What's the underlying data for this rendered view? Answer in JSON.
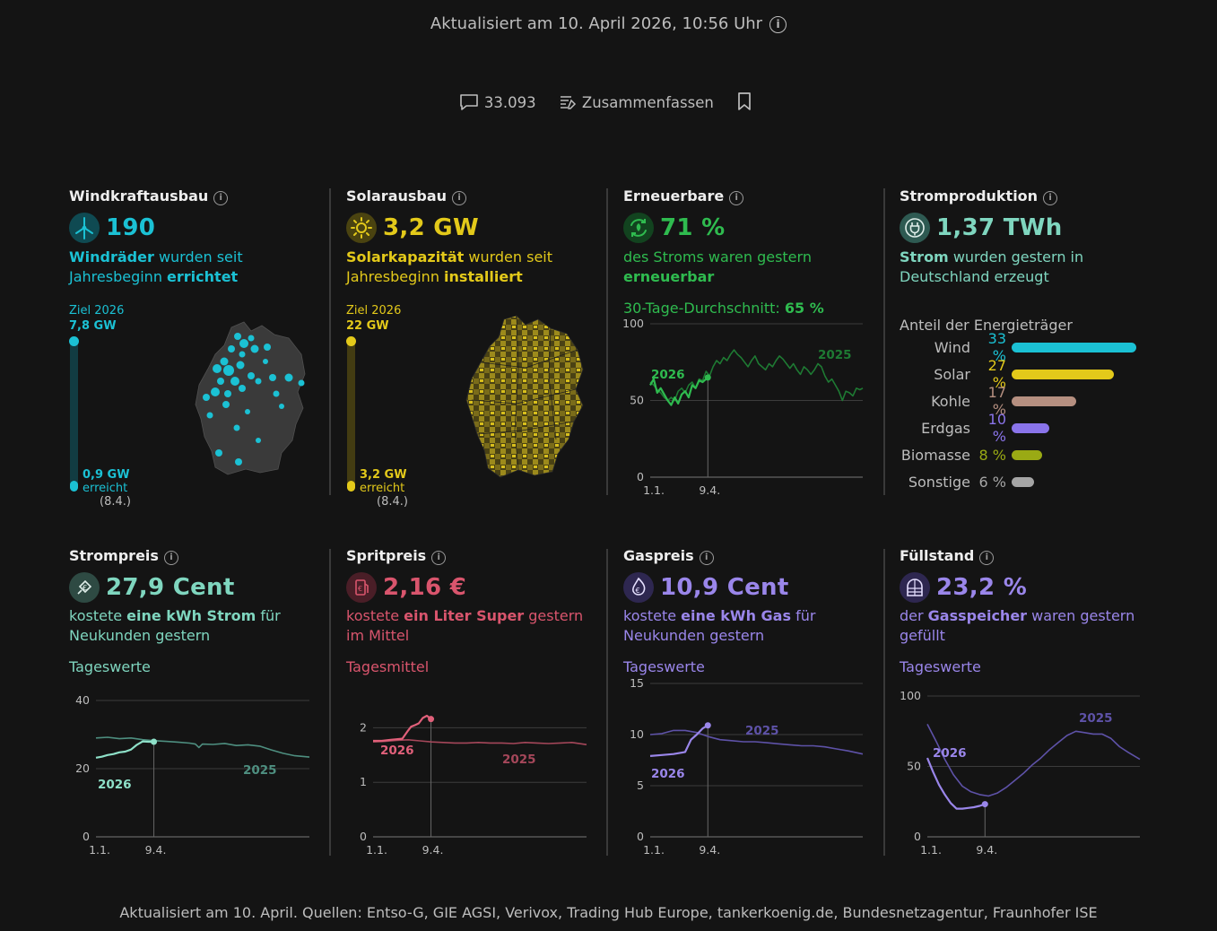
{
  "header": {
    "updated": "Aktualisiert am 10. April 2026, 10:56 Uhr",
    "comments": "33.093",
    "summarize": "Zusammenfassen"
  },
  "colors": {
    "wind": "#1bc1d4",
    "solar": "#e3c91a",
    "green": "#2fbb4f",
    "teal": "#7fd6bf",
    "red": "#d9556d",
    "purple": "#9a86ea",
    "kohle": "#b58f80",
    "bio": "#9aaa14",
    "sonst": "#a5a5a5"
  },
  "wind": {
    "title": "Windkraftausbau",
    "value": "190",
    "desc_b1": "Windräder",
    "desc_t1": " wurden seit",
    "desc_t2": "Jahresbeginn ",
    "desc_b2": "errichtet",
    "goal_label": "Ziel 2026",
    "goal_value": "7,8 GW",
    "reached_value": "0,9 GW",
    "reached_label": "erreicht",
    "reached_date": "(8.4.)",
    "reached_fraction": 0.115
  },
  "solar": {
    "title": "Solarausbau",
    "value": "3,2 GW",
    "desc_b1": "Solarkapazität",
    "desc_t1": " wurden seit",
    "desc_t2": "Jahresbeginn ",
    "desc_b2": "installiert",
    "goal_label": "Ziel 2026",
    "goal_value": "22 GW",
    "reached_value": "3,2 GW",
    "reached_label": "erreicht",
    "reached_date": "(8.4.)",
    "reached_fraction": 0.145
  },
  "renew": {
    "title": "Erneuerbare",
    "value": "71 %",
    "desc_t1": "des Stroms waren gestern",
    "desc_b1": "erneuerbar",
    "avg_label": "30-Tage-Durchschnitt: ",
    "avg_value": "65 %"
  },
  "prod": {
    "title": "Stromproduktion",
    "value": "1,37 TWh",
    "desc_b1": "Strom",
    "desc_t1": " wurden gestern in",
    "desc_t2": "Deutschland erzeugt",
    "share_title": "Anteil der Energieträger",
    "shares": [
      {
        "name": "Wind",
        "pct": "33 %",
        "value": 33,
        "color": "#1bc1d4"
      },
      {
        "name": "Solar",
        "pct": "27 %",
        "value": 27,
        "color": "#e3c91a"
      },
      {
        "name": "Kohle",
        "pct": "17 %",
        "value": 17,
        "color": "#b58f80"
      },
      {
        "name": "Erdgas",
        "pct": "10 %",
        "value": 10,
        "color": "#8a74ea"
      },
      {
        "name": "Biomasse",
        "pct": "8 %",
        "value": 8,
        "color": "#9aaa14"
      },
      {
        "name": "Sonstige",
        "pct": "6 %",
        "value": 6,
        "color": "#a5a5a5"
      }
    ]
  },
  "strom": {
    "title": "Strompreis",
    "value": "27,9 Cent",
    "desc_t1": "kostete ",
    "desc_b1": "eine kWh Strom",
    "desc_t2": " für",
    "desc_t3": "Neukunden gestern",
    "sub": "Tageswerte"
  },
  "sprit": {
    "title": "Spritpreis",
    "value": "2,16 €",
    "desc_t1": "kostete ",
    "desc_b1": "ein Liter Super",
    "desc_t2": " gestern",
    "desc_t3": "im Mittel",
    "sub": "Tagesmittel"
  },
  "gas": {
    "title": "Gaspreis",
    "value": "10,9 Cent",
    "desc_t1": "kostete ",
    "desc_b1": "eine kWh Gas",
    "desc_t2": " für",
    "desc_t3": "Neukunden gestern",
    "sub": "Tageswerte"
  },
  "fuell": {
    "title": "Füllstand",
    "value": "23,2 %",
    "desc_t1": "der ",
    "desc_b1": "Gasspeicher",
    "desc_t2": " waren gestern",
    "desc_t3": "gefüllt",
    "sub": "Tageswerte"
  },
  "chart_data": [
    {
      "id": "renew",
      "type": "line",
      "title": "Erneuerbare",
      "x_labels": [
        "1.1.",
        "9.4."
      ],
      "ylim": [
        0,
        100
      ],
      "yticks": [
        0,
        50,
        100
      ],
      "series": [
        {
          "name": "2025",
          "days": [
            0,
            6,
            12,
            18,
            24,
            30,
            36,
            42,
            48,
            54,
            60,
            66,
            72,
            78,
            84,
            90,
            96,
            102,
            108,
            114,
            120,
            126,
            132,
            138,
            144,
            150,
            156,
            162,
            168,
            174,
            180,
            186,
            192,
            198,
            204,
            210,
            216,
            222,
            228,
            234,
            240,
            246,
            252,
            258,
            264,
            270,
            276,
            282,
            288,
            294,
            300,
            306,
            312,
            318,
            324,
            330,
            336,
            342,
            348,
            354,
            360,
            365
          ],
          "values": [
            62,
            60,
            57,
            55,
            52,
            50,
            52,
            50,
            56,
            58,
            55,
            60,
            62,
            58,
            64,
            63,
            69,
            66,
            72,
            76,
            74,
            78,
            76,
            80,
            83,
            80,
            78,
            75,
            72,
            76,
            79,
            74,
            72,
            70,
            74,
            72,
            76,
            79,
            77,
            74,
            71,
            74,
            70,
            67,
            72,
            70,
            67,
            70,
            74,
            72,
            66,
            62,
            64,
            60,
            56,
            50,
            56,
            55,
            53,
            58,
            57,
            58
          ]
        },
        {
          "name": "2026",
          "days": [
            0,
            6,
            12,
            18,
            24,
            30,
            36,
            42,
            48,
            54,
            60,
            66,
            72,
            78,
            84,
            90,
            99
          ],
          "values": [
            60,
            64,
            55,
            58,
            54,
            50,
            47,
            52,
            48,
            54,
            56,
            52,
            60,
            58,
            63,
            62,
            65
          ]
        }
      ]
    },
    {
      "id": "strom",
      "type": "line",
      "title": "Strompreis",
      "x_labels": [
        "1.1.",
        "9.4."
      ],
      "ylim": [
        0,
        40
      ],
      "yticks": [
        0,
        20,
        40
      ],
      "series": [
        {
          "name": "2025",
          "days": [
            0,
            20,
            40,
            60,
            80,
            100,
            120,
            140,
            160,
            170,
            176,
            182,
            200,
            220,
            240,
            260,
            280,
            300,
            320,
            340,
            365
          ],
          "values": [
            29,
            29.2,
            28.8,
            29,
            28.5,
            28.2,
            28,
            27.8,
            27.5,
            27.2,
            26.2,
            27.2,
            27.1,
            27.4,
            26.8,
            27,
            26.6,
            25.5,
            24.5,
            23.8,
            23.4
          ]
        },
        {
          "name": "2026",
          "days": [
            0,
            10,
            20,
            30,
            40,
            50,
            60,
            70,
            80,
            90,
            99
          ],
          "values": [
            23.2,
            23.5,
            24,
            24.3,
            24.8,
            25,
            25.6,
            27,
            28,
            27.9,
            27.9
          ]
        }
      ]
    },
    {
      "id": "sprit",
      "type": "line",
      "title": "Spritpreis",
      "x_labels": [
        "1.1.",
        "9.4."
      ],
      "ylim": [
        0,
        2.5
      ],
      "yticks": [
        0,
        1,
        2
      ],
      "series": [
        {
          "name": "2025",
          "days": [
            0,
            20,
            40,
            60,
            80,
            100,
            120,
            140,
            160,
            180,
            200,
            220,
            240,
            260,
            280,
            300,
            320,
            340,
            365
          ],
          "values": [
            1.74,
            1.75,
            1.77,
            1.78,
            1.76,
            1.74,
            1.73,
            1.72,
            1.72,
            1.73,
            1.72,
            1.72,
            1.71,
            1.73,
            1.72,
            1.71,
            1.72,
            1.73,
            1.69
          ]
        },
        {
          "name": "2026",
          "days": [
            0,
            15,
            30,
            50,
            60,
            65,
            72,
            78,
            85,
            92,
            99
          ],
          "values": [
            1.76,
            1.76,
            1.78,
            1.8,
            1.95,
            2.02,
            2.05,
            2.08,
            2.18,
            2.22,
            2.16
          ]
        }
      ]
    },
    {
      "id": "gas",
      "type": "line",
      "title": "Gaspreis",
      "x_labels": [
        "1.1.",
        "9.4."
      ],
      "ylim": [
        0,
        15
      ],
      "yticks": [
        0,
        5,
        10,
        15
      ],
      "series": [
        {
          "name": "2025",
          "days": [
            0,
            20,
            40,
            60,
            80,
            100,
            120,
            140,
            160,
            180,
            200,
            220,
            240,
            260,
            280,
            300,
            320,
            340,
            365
          ],
          "values": [
            10,
            10.1,
            10.4,
            10.4,
            10.2,
            9.8,
            9.5,
            9.4,
            9.3,
            9.3,
            9.2,
            9.1,
            9,
            8.9,
            8.9,
            8.8,
            8.6,
            8.4,
            8.1
          ]
        },
        {
          "name": "2026",
          "days": [
            0,
            20,
            40,
            60,
            70,
            80,
            90,
            99
          ],
          "values": [
            7.9,
            8,
            8.1,
            8.3,
            9.5,
            10,
            10.6,
            10.9
          ]
        }
      ]
    },
    {
      "id": "fuell",
      "type": "line",
      "title": "Füllstand",
      "x_labels": [
        "1.1.",
        "9.4."
      ],
      "ylim": [
        0,
        100
      ],
      "yticks": [
        0,
        50,
        100
      ],
      "series": [
        {
          "name": "2025",
          "days": [
            0,
            15,
            30,
            45,
            60,
            75,
            90,
            105,
            120,
            135,
            150,
            165,
            180,
            195,
            210,
            225,
            240,
            255,
            270,
            285,
            300,
            315,
            330,
            345,
            365
          ],
          "values": [
            80,
            68,
            55,
            44,
            36,
            32,
            30,
            29,
            31,
            35,
            40,
            45,
            51,
            56,
            62,
            67,
            72,
            75,
            74,
            73,
            73,
            70,
            64,
            60,
            55
          ]
        },
        {
          "name": "2026",
          "days": [
            0,
            10,
            20,
            30,
            40,
            50,
            60,
            70,
            80,
            90,
            99
          ],
          "values": [
            56,
            46,
            37,
            30,
            24,
            20,
            20,
            20.5,
            21,
            22,
            23.2
          ]
        }
      ]
    }
  ]
}
